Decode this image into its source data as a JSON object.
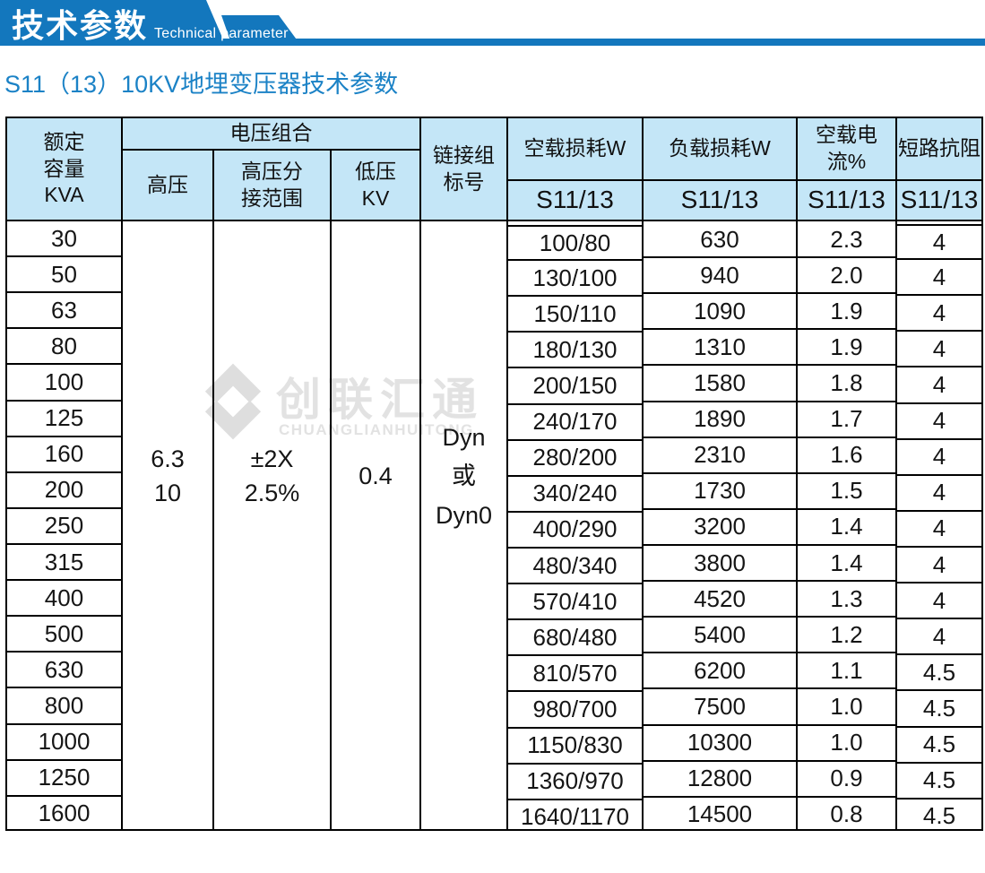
{
  "banner": {
    "title_cn": "技术参数",
    "title_en": "Technical parameter"
  },
  "page_title": "S11（13）10KV地埋变压器技术参数",
  "colors": {
    "banner_blue": "#1377bd",
    "title_blue": "#1b82c6",
    "header_bg": "#c4e6f7",
    "border": "#000000",
    "watermark_gray": "#e2e2e2"
  },
  "watermark": {
    "logo": "diamond-interlock-logo",
    "text_cn": "创联汇通",
    "text_en": "CHUANGLIANHUITONG"
  },
  "table": {
    "headers": {
      "rated_capacity": [
        "额定",
        "容量",
        "KVA"
      ],
      "voltage_combo": "电压组合",
      "hv": "高压",
      "tap_range": [
        "高压分",
        "接范围"
      ],
      "lv": [
        "低压",
        "KV"
      ],
      "vector_group": [
        "链接组",
        "标号"
      ],
      "no_load_loss": "空载损耗W",
      "load_loss": "负载损耗W",
      "no_load_current": "空载电流%",
      "impedance": "短路抗阻",
      "sub": "S11/13"
    },
    "merged": {
      "hv": [
        "6.3",
        "10"
      ],
      "tap": [
        "±2X",
        "2.5%"
      ],
      "lv": [
        "0.4"
      ],
      "vector": [
        "Dyn",
        "或",
        "Dyn0"
      ]
    },
    "rows": [
      {
        "kva": "30",
        "no_load_loss": "100/80",
        "load_loss": "630",
        "no_load_current": "2.3",
        "impedance": "4"
      },
      {
        "kva": "50",
        "no_load_loss": "130/100",
        "load_loss": "940",
        "no_load_current": "2.0",
        "impedance": "4"
      },
      {
        "kva": "63",
        "no_load_loss": "150/110",
        "load_loss": "1090",
        "no_load_current": "1.9",
        "impedance": "4"
      },
      {
        "kva": "80",
        "no_load_loss": "180/130",
        "load_loss": "1310",
        "no_load_current": "1.9",
        "impedance": "4"
      },
      {
        "kva": "100",
        "no_load_loss": "200/150",
        "load_loss": "1580",
        "no_load_current": "1.8",
        "impedance": "4"
      },
      {
        "kva": "125",
        "no_load_loss": "240/170",
        "load_loss": "1890",
        "no_load_current": "1.7",
        "impedance": "4"
      },
      {
        "kva": "160",
        "no_load_loss": "280/200",
        "load_loss": "2310",
        "no_load_current": "1.6",
        "impedance": "4"
      },
      {
        "kva": "200",
        "no_load_loss": "340/240",
        "load_loss": "1730",
        "no_load_current": "1.5",
        "impedance": "4"
      },
      {
        "kva": "250",
        "no_load_loss": "400/290",
        "load_loss": "3200",
        "no_load_current": "1.4",
        "impedance": "4"
      },
      {
        "kva": "315",
        "no_load_loss": "480/340",
        "load_loss": "3800",
        "no_load_current": "1.4",
        "impedance": "4"
      },
      {
        "kva": "400",
        "no_load_loss": "570/410",
        "load_loss": "4520",
        "no_load_current": "1.3",
        "impedance": "4"
      },
      {
        "kva": "500",
        "no_load_loss": "680/480",
        "load_loss": "5400",
        "no_load_current": "1.2",
        "impedance": "4"
      },
      {
        "kva": "630",
        "no_load_loss": "810/570",
        "load_loss": "6200",
        "no_load_current": "1.1",
        "impedance": "4.5"
      },
      {
        "kva": "800",
        "no_load_loss": "980/700",
        "load_loss": "7500",
        "no_load_current": "1.0",
        "impedance": "4.5"
      },
      {
        "kva": "1000",
        "no_load_loss": "1150/830",
        "load_loss": "10300",
        "no_load_current": "1.0",
        "impedance": "4.5"
      },
      {
        "kva": "1250",
        "no_load_loss": "1360/970",
        "load_loss": "12800",
        "no_load_current": "0.9",
        "impedance": "4.5"
      },
      {
        "kva": "1600",
        "no_load_loss": "1640/1170",
        "load_loss": "14500",
        "no_load_current": "0.8",
        "impedance": "4.5"
      }
    ]
  }
}
